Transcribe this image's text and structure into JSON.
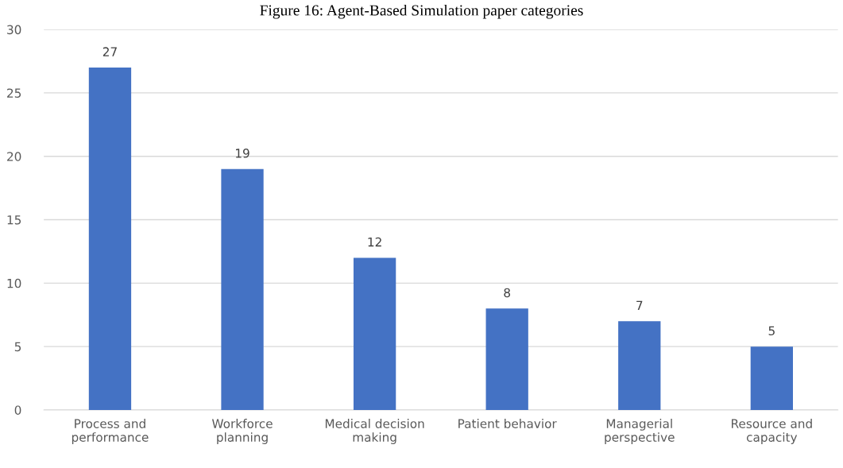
{
  "chart_data": {
    "type": "bar",
    "title": "Figure 16: Agent-Based Simulation paper categories",
    "categories": [
      "Process and\nperformance",
      "Workforce\nplanning",
      "Medical decision\nmaking",
      "Patient behavior",
      "Managerial\nperspective",
      "Resource and\ncapacity"
    ],
    "values": [
      27,
      19,
      12,
      8,
      7,
      5
    ],
    "color": "#4472c4",
    "data_labels": true,
    "ylim": [
      0,
      30
    ],
    "yticks": [
      0,
      5,
      10,
      15,
      20,
      25,
      30
    ],
    "grid": "y"
  }
}
